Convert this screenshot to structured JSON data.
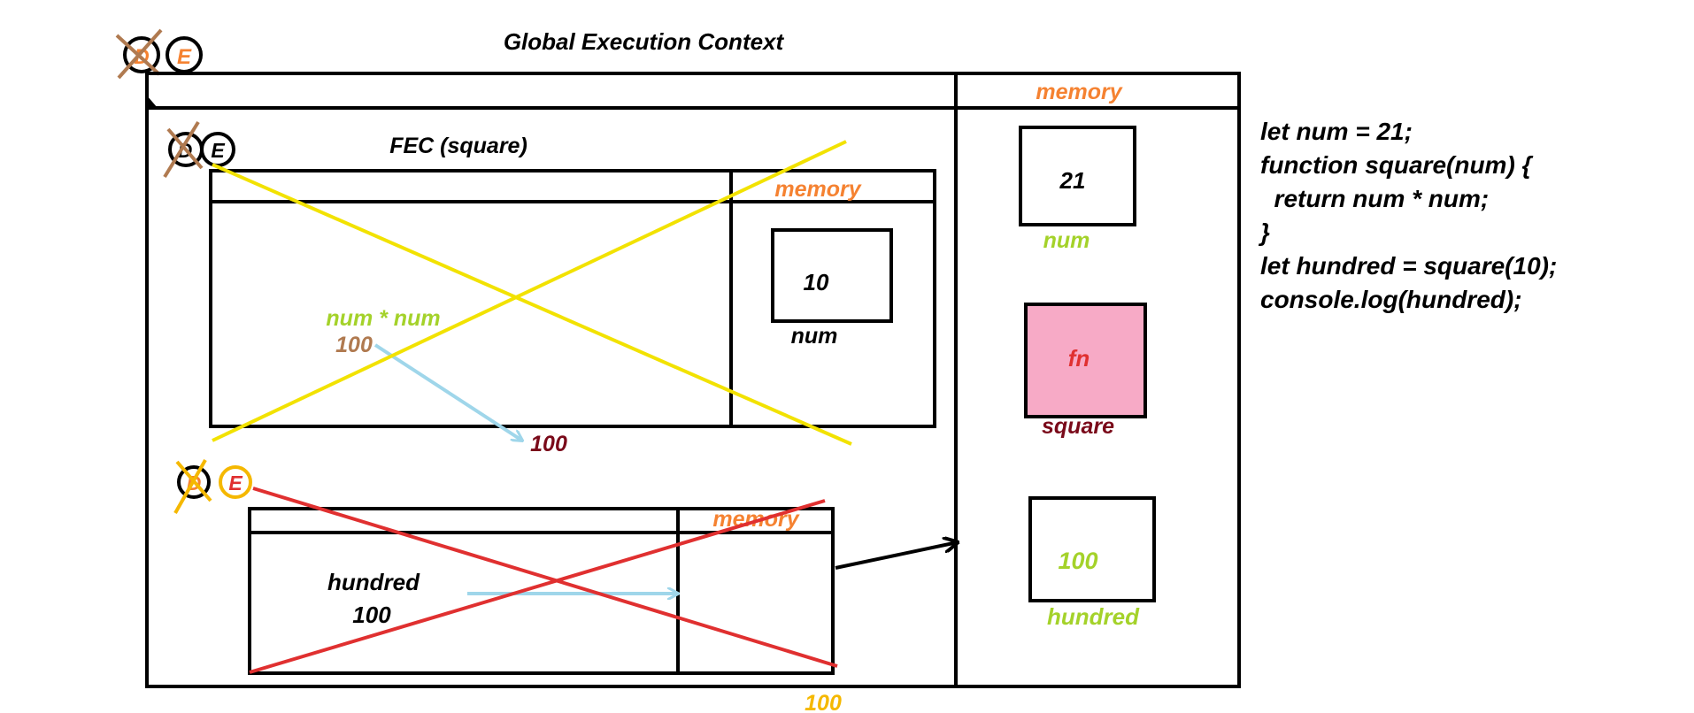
{
  "colors": {
    "black": "#000000",
    "orange": "#f58231",
    "lime": "#a4d22a",
    "brown": "#b07a50",
    "maroon": "#7a0a1a",
    "red": "#e03030",
    "yellow": "#f2e200",
    "gold": "#f5b800",
    "light_blue": "#9fd6ea",
    "pink": "#f7aac6"
  },
  "global": {
    "title": "Global Execution Context",
    "memory_label": "memory",
    "badge": {
      "left": "D",
      "right": "E"
    },
    "values": {
      "num": {
        "name": "num",
        "value": "21"
      },
      "square": {
        "name": "square",
        "value": "fn"
      },
      "hundred": {
        "name": "hundred",
        "value": "100"
      }
    }
  },
  "fec": {
    "title": "FEC (square)",
    "memory_label": "memory",
    "badge": {
      "left": "D",
      "right": "E"
    },
    "param": {
      "name": "num",
      "value": "10"
    },
    "expression": "num * num",
    "result": "100",
    "return_value": "100"
  },
  "fec2": {
    "memory_label": "memory",
    "badge": {
      "left": "D",
      "right": "E"
    },
    "var_name": "hundred",
    "var_value": "100",
    "bottom_value": "100"
  },
  "code": {
    "lines": [
      "let num = 21;",
      "function square(num) {",
      "  return num * num;",
      "}",
      "let hundred = square(10);",
      "console.log(hundred);"
    ]
  }
}
